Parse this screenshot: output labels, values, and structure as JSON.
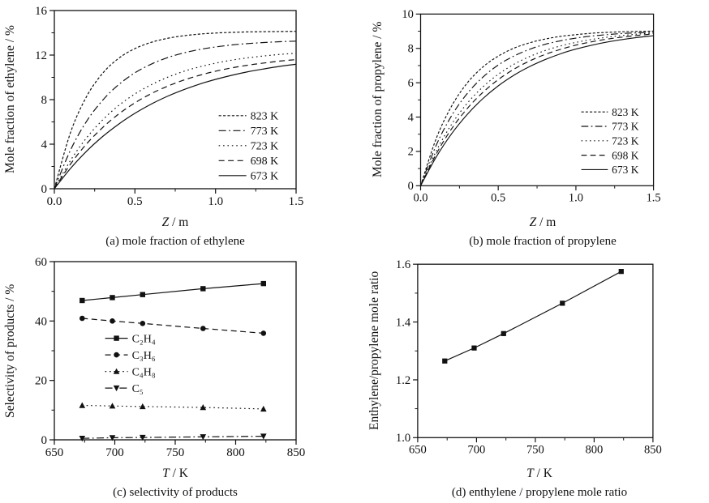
{
  "page": {
    "background": "#ffffff",
    "ink": "#111111"
  },
  "chart_data": [
    {
      "type": "line",
      "caption": "(a) mole fraction of ethylene",
      "xlabel": "Z / m",
      "xlabel_var": "Z",
      "xlabel_unit": " / m",
      "ylabel": "Mole fraction of ethylene / %",
      "xlim": [
        0,
        1.5
      ],
      "ylim": [
        0,
        16
      ],
      "grid": false,
      "curve": true,
      "xticks": {
        "major": [
          0,
          0.5,
          1.0,
          1.5
        ],
        "labels": [
          "0.0",
          "0.5",
          "1.0",
          "1.5"
        ],
        "minor": [
          0.25,
          0.75,
          1.25
        ]
      },
      "yticks": {
        "major": [
          0,
          4,
          8,
          12,
          16
        ],
        "labels": [
          "0",
          "4",
          "8",
          "12",
          "16"
        ],
        "minor": [
          2,
          6,
          10,
          14
        ]
      },
      "x": [
        0,
        0.1,
        0.2,
        0.3,
        0.4,
        0.5,
        0.6,
        0.7,
        0.8,
        0.9,
        1.0,
        1.1,
        1.2,
        1.3,
        1.4,
        1.5
      ],
      "series": [
        {
          "name": "823 K",
          "style": "shortdash",
          "marker": null,
          "values": [
            0,
            5.04,
            8.28,
            10.37,
            11.72,
            12.58,
            13.14,
            13.5,
            13.73,
            13.88,
            13.98,
            14.04,
            14.08,
            14.1,
            14.12,
            14.13
          ]
        },
        {
          "name": "773 K",
          "style": "dashdot",
          "marker": null,
          "values": [
            0,
            3.47,
            6.05,
            7.95,
            9.36,
            10.41,
            11.18,
            11.76,
            12.18,
            12.5,
            12.73,
            12.91,
            13.03,
            13.13,
            13.2,
            13.25
          ]
        },
        {
          "name": "723 K",
          "style": "dot",
          "marker": null,
          "values": [
            0,
            2.54,
            4.57,
            6.18,
            7.48,
            8.51,
            9.33,
            9.99,
            10.52,
            10.94,
            11.27,
            11.54,
            11.75,
            11.92,
            12.06,
            12.17
          ]
        },
        {
          "name": "698 K",
          "style": "dash",
          "marker": null,
          "values": [
            0,
            2.21,
            4.02,
            5.5,
            6.72,
            7.71,
            8.53,
            9.19,
            9.74,
            10.18,
            10.55,
            10.85,
            11.09,
            11.29,
            11.46,
            11.59
          ]
        },
        {
          "name": "673 K",
          "style": "solid",
          "marker": null,
          "values": [
            0,
            1.82,
            3.37,
            4.69,
            5.81,
            6.77,
            7.59,
            8.29,
            8.88,
            9.39,
            9.82,
            10.18,
            10.5,
            10.76,
            10.99,
            11.18
          ]
        }
      ],
      "legend": {
        "position": "right-center",
        "x": 0.68,
        "y": 0.59,
        "dy": 18.5,
        "len": 34
      }
    },
    {
      "type": "line",
      "caption": "(b) mole fraction of propylene",
      "xlabel": "Z / m",
      "xlabel_var": "Z",
      "xlabel_unit": " / m",
      "ylabel": "Mole fraction of propylene / %",
      "xlim": [
        0,
        1.5
      ],
      "ylim": [
        0,
        10
      ],
      "grid": false,
      "curve": true,
      "xticks": {
        "major": [
          0,
          0.5,
          1.0,
          1.5
        ],
        "labels": [
          "0.0",
          "0.5",
          "1.0",
          "1.5"
        ],
        "minor": [
          0.25,
          0.75,
          1.25
        ]
      },
      "yticks": {
        "major": [
          0,
          2,
          4,
          6,
          8,
          10
        ],
        "labels": [
          "0",
          "2",
          "4",
          "6",
          "8",
          "10"
        ],
        "minor": [
          1,
          3,
          5,
          7,
          9
        ]
      },
      "x": [
        0,
        0.1,
        0.2,
        0.3,
        0.4,
        0.5,
        0.6,
        0.7,
        0.8,
        0.9,
        1.0,
        1.1,
        1.2,
        1.3,
        1.4,
        1.5
      ],
      "series": [
        {
          "name": "823 K",
          "style": "shortdash",
          "marker": null,
          "values": [
            0,
            2.74,
            4.64,
            5.98,
            6.91,
            7.55,
            8.01,
            8.32,
            8.54,
            8.7,
            8.8,
            8.88,
            8.93,
            8.97,
            8.99,
            9.01
          ]
        },
        {
          "name": "773 K",
          "style": "dashdot",
          "marker": null,
          "values": [
            0,
            2.35,
            4.08,
            5.37,
            6.32,
            7.03,
            7.55,
            7.94,
            8.23,
            8.44,
            8.6,
            8.72,
            8.8,
            8.87,
            8.91,
            8.95
          ]
        },
        {
          "name": "723 K",
          "style": "dot",
          "marker": null,
          "values": [
            0,
            2.01,
            3.58,
            4.8,
            5.75,
            6.49,
            7.07,
            7.52,
            7.87,
            8.14,
            8.35,
            8.52,
            8.65,
            8.75,
            8.83,
            8.89
          ]
        },
        {
          "name": "698 K",
          "style": "dash",
          "marker": null,
          "values": [
            0,
            1.84,
            3.32,
            4.49,
            5.43,
            6.18,
            6.78,
            7.26,
            7.64,
            7.94,
            8.19,
            8.38,
            8.54,
            8.66,
            8.76,
            8.84
          ]
        },
        {
          "name": "673 K",
          "style": "solid",
          "marker": null,
          "values": [
            0,
            1.67,
            3.03,
            4.15,
            5.07,
            5.82,
            6.43,
            6.93,
            7.34,
            7.68,
            7.96,
            8.18,
            8.37,
            8.52,
            8.64,
            8.74
          ]
        }
      ],
      "legend": {
        "position": "right-center",
        "x": 0.69,
        "y": 0.57,
        "dy": 18.5,
        "len": 34
      }
    },
    {
      "type": "line",
      "caption": "(c) selectivity of products",
      "xlabel": "T / K",
      "xlabel_var": "T",
      "xlabel_unit": " / K",
      "ylabel": "Selectivity of products / %",
      "xlim": [
        650,
        850
      ],
      "ylim": [
        0,
        60
      ],
      "grid": false,
      "curve": false,
      "xticks": {
        "major": [
          650,
          700,
          750,
          800,
          850
        ],
        "labels": [
          "650",
          "700",
          "750",
          "800",
          "850"
        ],
        "minor": [
          675,
          725,
          775,
          825
        ]
      },
      "yticks": {
        "major": [
          0,
          20,
          40,
          60
        ],
        "labels": [
          "0",
          "20",
          "40",
          "60"
        ],
        "minor": [
          10,
          30,
          50
        ]
      },
      "x": [
        673,
        698,
        723,
        773,
        823
      ],
      "series": [
        {
          "name": "C₂H₄",
          "style": "solid",
          "marker": "square",
          "values": [
            46.9,
            47.9,
            48.9,
            50.9,
            52.6
          ]
        },
        {
          "name": "C₃H₆",
          "style": "dash",
          "marker": "circle",
          "values": [
            40.9,
            40.0,
            39.2,
            37.5,
            35.9
          ]
        },
        {
          "name": "C₄H₈",
          "style": "dot",
          "marker": "triangle-up",
          "values": [
            11.6,
            11.4,
            11.2,
            10.9,
            10.4
          ]
        },
        {
          "name": "C₅",
          "style": "dashdot",
          "marker": "triangle-down",
          "values": [
            0.5,
            0.7,
            0.8,
            1.0,
            1.2
          ]
        }
      ],
      "legend": {
        "position": "left-middle",
        "x": 0.21,
        "y": 0.43,
        "dy": 20.5,
        "len": 28
      }
    },
    {
      "type": "line",
      "caption": "(d) enthylene / propylene mole ratio",
      "xlabel": "T / K",
      "xlabel_var": "T",
      "xlabel_unit": " / K",
      "ylabel": "Enthylene/propylene mole ratio",
      "xlim": [
        650,
        850
      ],
      "ylim": [
        1.0,
        1.6
      ],
      "grid": false,
      "curve": false,
      "xticks": {
        "major": [
          650,
          700,
          750,
          800,
          850
        ],
        "labels": [
          "650",
          "700",
          "750",
          "800",
          "850"
        ],
        "minor": [
          675,
          725,
          775,
          825
        ]
      },
      "yticks": {
        "major": [
          1.0,
          1.2,
          1.4,
          1.6
        ],
        "labels": [
          "1.0",
          "1.2",
          "1.4",
          "1.6"
        ],
        "minor": [
          1.1,
          1.3,
          1.5
        ]
      },
      "x": [
        673,
        698,
        723,
        773,
        823
      ],
      "series": [
        {
          "name": "Enthylene/propylene mole ratio",
          "style": "solid",
          "marker": "square",
          "values": [
            1.265,
            1.31,
            1.36,
            1.465,
            1.575
          ]
        }
      ],
      "legend": null
    }
  ]
}
